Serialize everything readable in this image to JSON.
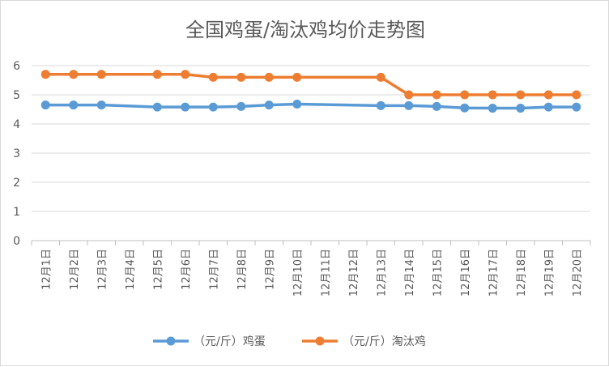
{
  "chart_data": {
    "type": "line",
    "title": "全国鸡蛋/淘汰鸡均价走势图",
    "xlabel": "",
    "ylabel": "",
    "ylim": [
      0,
      6
    ],
    "yticks": [
      0,
      1,
      2,
      3,
      4,
      5,
      6
    ],
    "grid": true,
    "legend_position": "bottom",
    "categories": [
      "12月1日",
      "12月2日",
      "12月3日",
      "12月4日",
      "12月5日",
      "12月6日",
      "12月7日",
      "12月8日",
      "12月9日",
      "12月10日",
      "12月11日",
      "12月12日",
      "12月13日",
      "12月14日",
      "12月15日",
      "12月16日",
      "12月17日",
      "12月18日",
      "12月19日",
      "12月20日"
    ],
    "series": [
      {
        "name": "（元/斤）鸡蛋",
        "color": "#5b9bd5",
        "values": [
          4.65,
          4.65,
          4.65,
          null,
          4.58,
          4.58,
          4.58,
          4.6,
          4.65,
          4.68,
          null,
          null,
          4.63,
          4.63,
          4.6,
          4.55,
          4.54,
          4.54,
          4.58,
          4.58
        ]
      },
      {
        "name": "（元/斤）淘汰鸡",
        "color": "#ed7d31",
        "values": [
          5.7,
          5.7,
          5.7,
          null,
          5.7,
          5.7,
          5.6,
          5.6,
          5.6,
          5.6,
          null,
          null,
          5.6,
          5.0,
          5.0,
          5.0,
          5.0,
          5.0,
          5.0,
          5.0
        ]
      }
    ]
  }
}
